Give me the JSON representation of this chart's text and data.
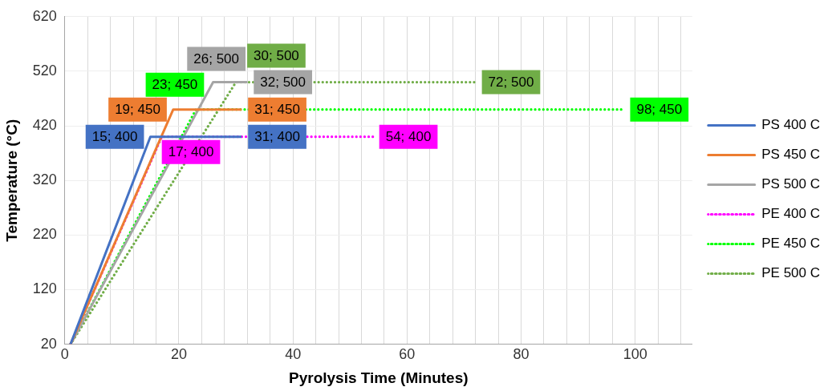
{
  "chart_data": {
    "type": "line",
    "xlabel": "Pyrolysis Time (Minutes)",
    "ylabel": "Temperature (°C)",
    "xlim": [
      0,
      110
    ],
    "xticks": [
      0,
      {
        "value": 4,
        "label": null
      },
      {
        "value": 8,
        "label": null
      },
      {
        "value": 12,
        "label": null
      },
      {
        "value": 16,
        "label": null
      },
      20,
      {
        "value": 24,
        "label": null
      },
      {
        "value": 28,
        "label": null
      },
      {
        "value": 32,
        "label": null
      },
      {
        "value": 36,
        "label": null
      },
      40,
      {
        "value": 44,
        "label": null
      },
      {
        "value": 48,
        "label": null
      },
      {
        "value": 52,
        "label": null
      },
      {
        "value": 56,
        "label": null
      },
      60,
      {
        "value": 64,
        "label": null
      },
      {
        "value": 68,
        "label": null
      },
      {
        "value": 72,
        "label": null
      },
      {
        "value": 76,
        "label": null
      },
      80,
      {
        "value": 84,
        "label": null
      },
      {
        "value": 88,
        "label": null
      },
      {
        "value": 92,
        "label": null
      },
      {
        "value": 96,
        "label": null
      },
      100,
      {
        "value": 104,
        "label": null
      },
      {
        "value": 108,
        "label": null
      }
    ],
    "ylim": [
      20,
      620
    ],
    "yticks": [
      20,
      120,
      220,
      320,
      420,
      520,
      620
    ],
    "grid": true,
    "legend": "right",
    "marker": "none",
    "series": [
      {
        "name": "PS 400 C",
        "color": "#4472c4",
        "line_style": "solid",
        "x": [
          1,
          15,
          31
        ],
        "values": [
          20,
          400,
          400
        ],
        "value_labels": [
          null,
          "15; 400",
          "31; 400"
        ]
      },
      {
        "name": "PS 450 C",
        "color": "#ed7d31",
        "line_style": "solid",
        "x": [
          1,
          19,
          31
        ],
        "values": [
          20,
          450,
          450
        ],
        "value_labels": [
          null,
          "19; 450",
          "31; 450"
        ]
      },
      {
        "name": "PS 500 C",
        "color": "#a5a5a5",
        "line_style": "solid",
        "x": [
          1,
          26,
          32
        ],
        "values": [
          20,
          500,
          500
        ],
        "value_labels": [
          null,
          "26; 500",
          "32; 500"
        ]
      },
      {
        "name": "PE 400 C",
        "color": "#ff00ff",
        "line_style": "dotted",
        "x": [
          1,
          17,
          54
        ],
        "values": [
          20,
          400,
          400
        ],
        "value_labels": [
          null,
          "17; 400",
          "54; 400"
        ]
      },
      {
        "name": "PE 450 C",
        "color": "#00ff00",
        "line_style": "dotted",
        "x": [
          1,
          23,
          98
        ],
        "values": [
          20,
          450,
          450
        ],
        "value_labels": [
          null,
          "23; 450",
          "98; 450"
        ]
      },
      {
        "name": "PE 500 C",
        "color": "#70ad47",
        "line_style": "dotted",
        "x": [
          1,
          30,
          72
        ],
        "values": [
          20,
          500,
          500
        ],
        "value_labels": [
          null,
          "30; 500",
          "72; 500"
        ]
      }
    ]
  }
}
